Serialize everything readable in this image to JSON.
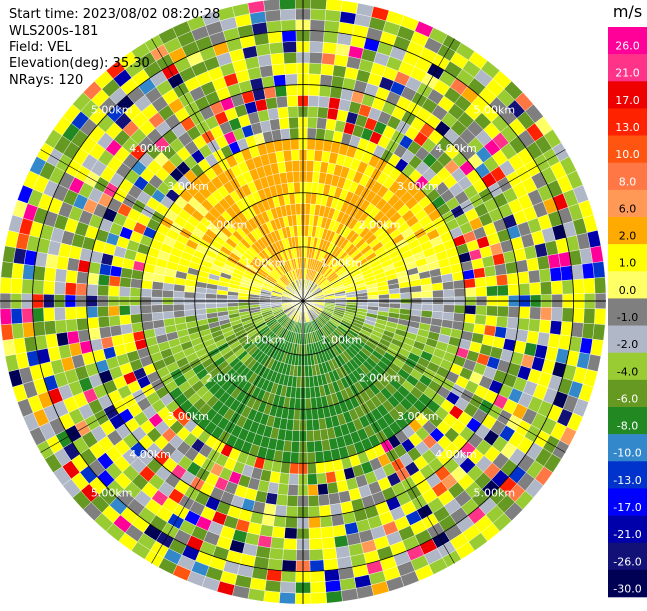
{
  "info": {
    "start_time": "Start time: 2023/08/02 08:20:28",
    "instrument": "WLS200s-181",
    "field": "Field: VEL",
    "elevation": "Elevation(deg): 35.30",
    "nrays": "NRays: 120"
  },
  "chart_data": {
    "type": "ppi",
    "field": "VEL",
    "units": "m/s",
    "n_rays": 120,
    "elevation_deg": 35.3,
    "range_rings_km": [
      1.0,
      2.0,
      3.0,
      4.0,
      5.0
    ],
    "ring_labels": [
      "1.00km",
      "2.00km",
      "3.00km",
      "4.00km",
      "5.00km"
    ],
    "max_range_km": 5.6,
    "colorbar": {
      "title": "m/s",
      "ticks": [
        "26.0",
        "21.0",
        "17.0",
        "13.0",
        "10.0",
        "8.0",
        "6.0",
        "2.0",
        "1.0",
        "0.0",
        "-1.0",
        "-2.0",
        "-4.0",
        "-6.0",
        "-8.0",
        "-10.0",
        "-13.0",
        "-17.0",
        "-21.0",
        "-26.0",
        "-30.0"
      ],
      "bin_colors": [
        "#ff0099",
        "#ff3388",
        "#ee0000",
        "#ff2200",
        "#ff5511",
        "#ff7744",
        "#ff9955",
        "#ffaa00",
        "#ffff00",
        "#ffff66",
        "#7f7f7f",
        "#b0b8c8",
        "#99cc33",
        "#669922",
        "#228822",
        "#3388cc",
        "#0033cc",
        "#0000ff",
        "#0000aa",
        "#111177",
        "#000055"
      ]
    }
  }
}
